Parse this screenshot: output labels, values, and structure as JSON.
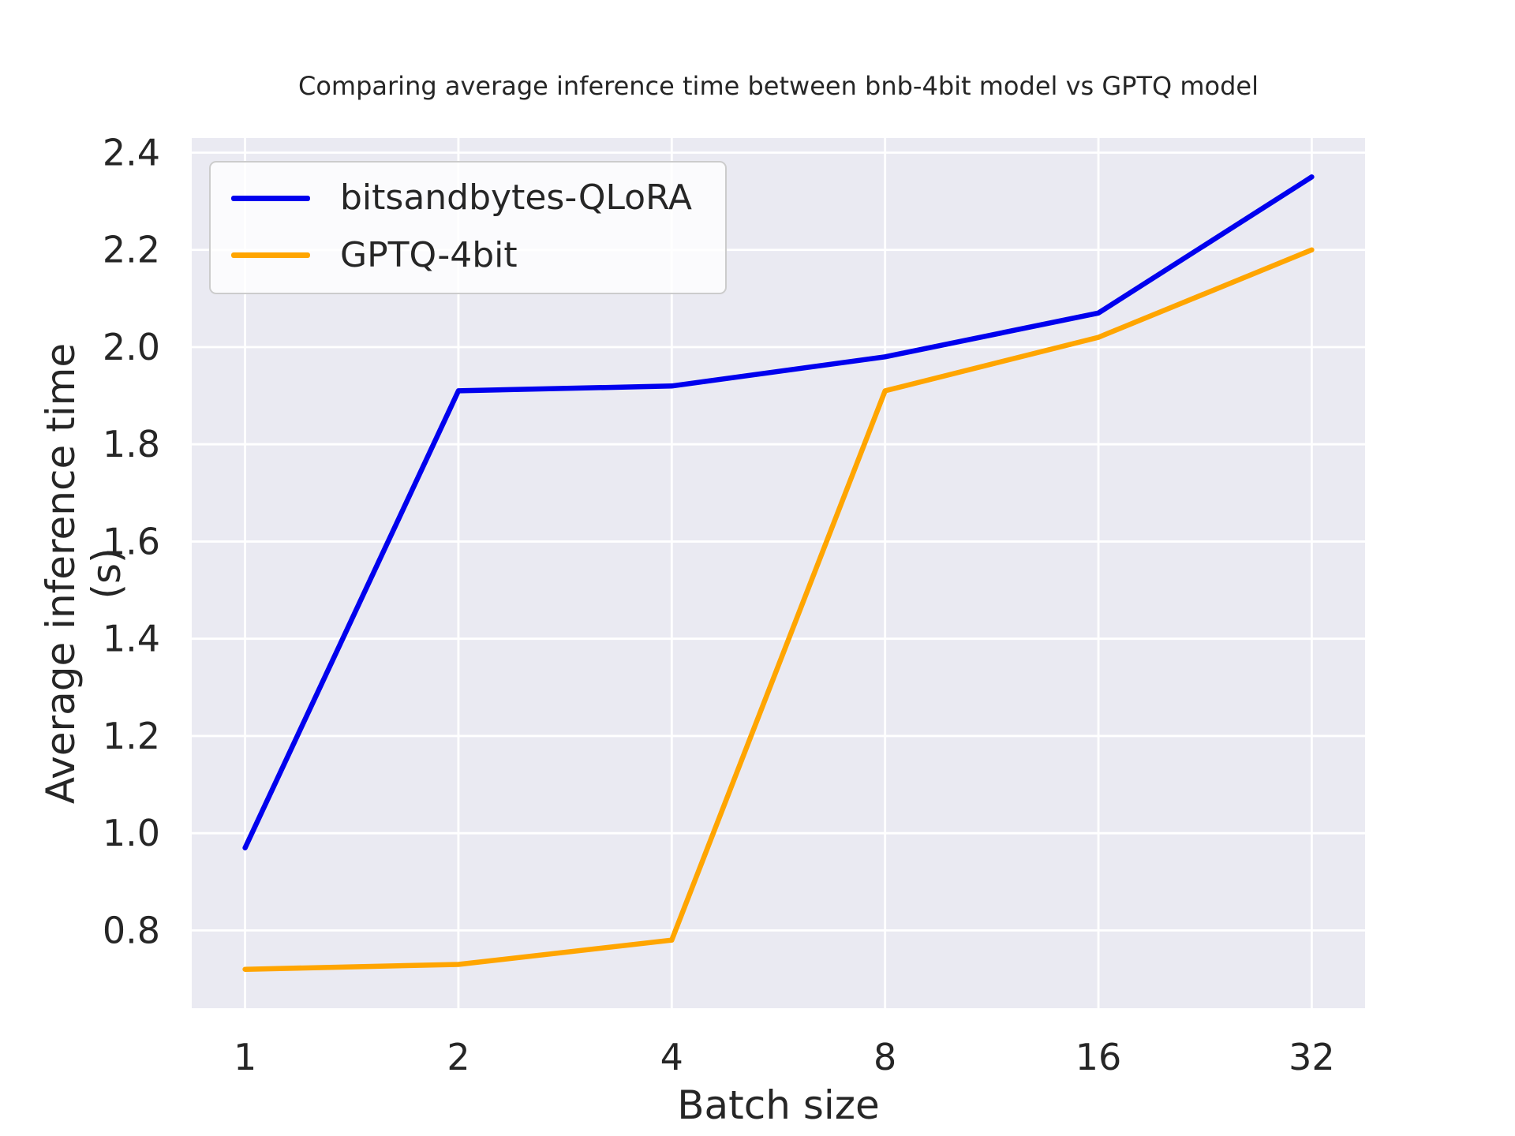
{
  "figure": {
    "background_color": "#ffffff",
    "plot_background_color": "#EAEAF2",
    "gridline_color": "#ffffff",
    "text_color": "#262626",
    "style": "seaborn-darkgrid"
  },
  "chart_data": {
    "type": "line",
    "title": "Comparing average inference time between bnb-4bit model vs GPTQ model",
    "xlabel": "Batch size",
    "ylabel": "Average inference time (s)",
    "categories": [
      "1",
      "2",
      "4",
      "8",
      "16",
      "32"
    ],
    "x_values": [
      1,
      2,
      4,
      8,
      16,
      32
    ],
    "x_axis_note": "batch sizes evenly spaced (log2-like categorical axis)",
    "series": [
      {
        "name": "bitsandbytes-QLoRA",
        "color": "#0000EE",
        "values": [
          0.97,
          1.91,
          1.92,
          1.98,
          2.07,
          2.35
        ]
      },
      {
        "name": "GPTQ-4bit",
        "color": "#FFA500",
        "values": [
          0.72,
          0.73,
          0.78,
          1.91,
          2.02,
          2.2
        ]
      }
    ],
    "yticks": [
      "0.8",
      "1.0",
      "1.2",
      "1.4",
      "1.6",
      "1.8",
      "2.0",
      "2.2",
      "2.4"
    ],
    "ytick_values": [
      0.8,
      1.0,
      1.2,
      1.4,
      1.6,
      1.8,
      2.0,
      2.2,
      2.4
    ],
    "ylim": [
      0.64,
      2.43
    ],
    "xlim_index": [
      -0.25,
      5.25
    ],
    "grid": true,
    "legend_position": "upper left"
  }
}
